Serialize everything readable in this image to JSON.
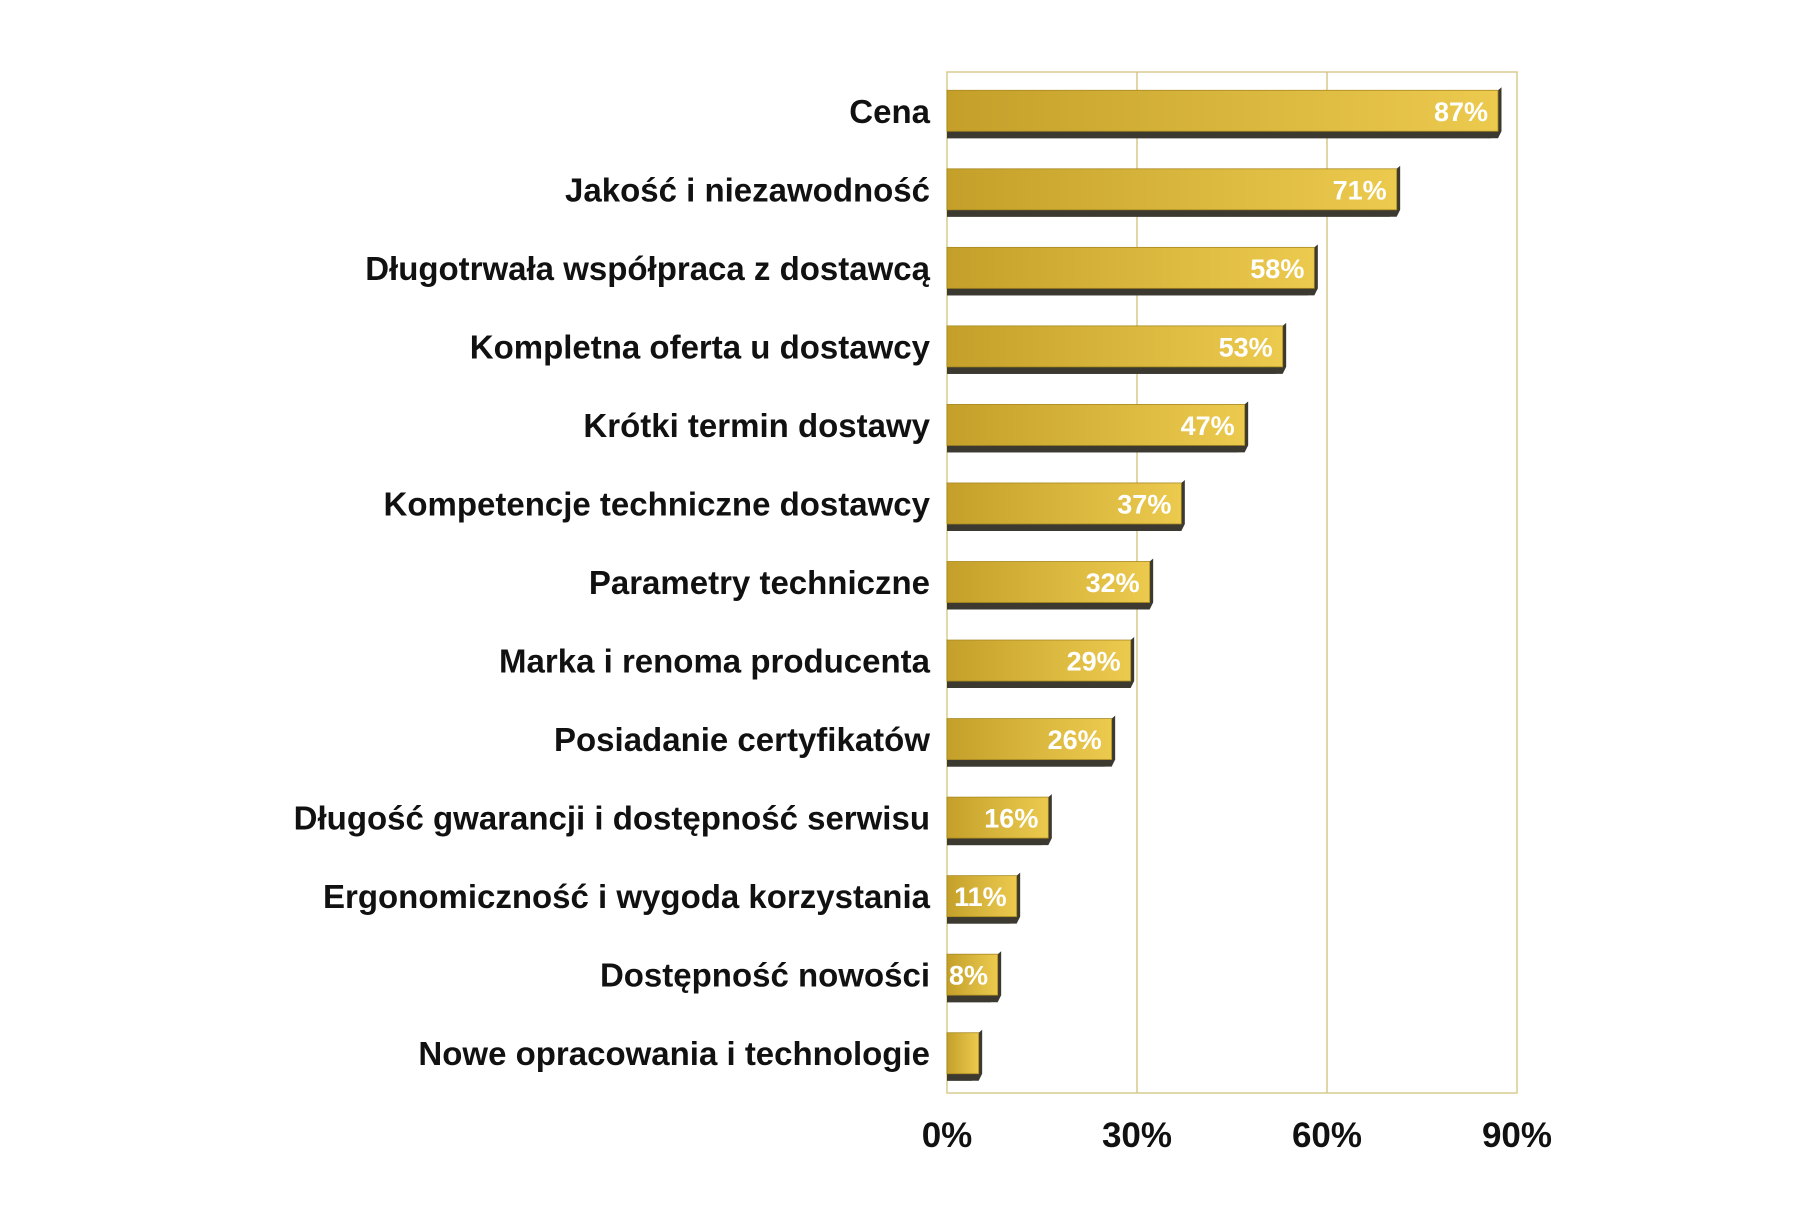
{
  "chart_data": {
    "type": "bar",
    "orientation": "horizontal",
    "categories": [
      "Cena",
      "Jakość i niezawodność",
      "Długotrwała współpraca z dostawcą",
      "Kompletna oferta u dostawcy",
      "Krótki termin dostawy",
      "Kompetencje techniczne dostawcy",
      "Parametry techniczne",
      "Marka i renoma producenta",
      "Posiadanie certyfikatów",
      "Długość gwarancji i dostępność serwisu",
      "Ergonomiczność i wygoda korzystania",
      "Dostępność nowości",
      "Nowe opracowania i technologie"
    ],
    "values": [
      87,
      71,
      58,
      53,
      47,
      37,
      32,
      29,
      26,
      16,
      11,
      8,
      5
    ],
    "data_labels": [
      "87%",
      "71%",
      "58%",
      "53%",
      "47%",
      "37%",
      "32%",
      "29%",
      "26%",
      "16%",
      "11%",
      "8%",
      ""
    ],
    "xlim": [
      0,
      90
    ],
    "xticks": [
      0,
      30,
      60,
      90
    ],
    "xtick_labels": [
      "0%",
      "30%",
      "60%",
      "90%"
    ],
    "title": "",
    "xlabel": "",
    "ylabel": "",
    "grid": "vertical",
    "colors": {
      "bar_light": "#ecca4e",
      "bar_dark": "#c4a02a",
      "bar_side": "#3c3a30",
      "grid": "#d6c88a",
      "frame": "#d9cc8f",
      "label_text": "#111111",
      "value_text": "#ffffff"
    }
  }
}
